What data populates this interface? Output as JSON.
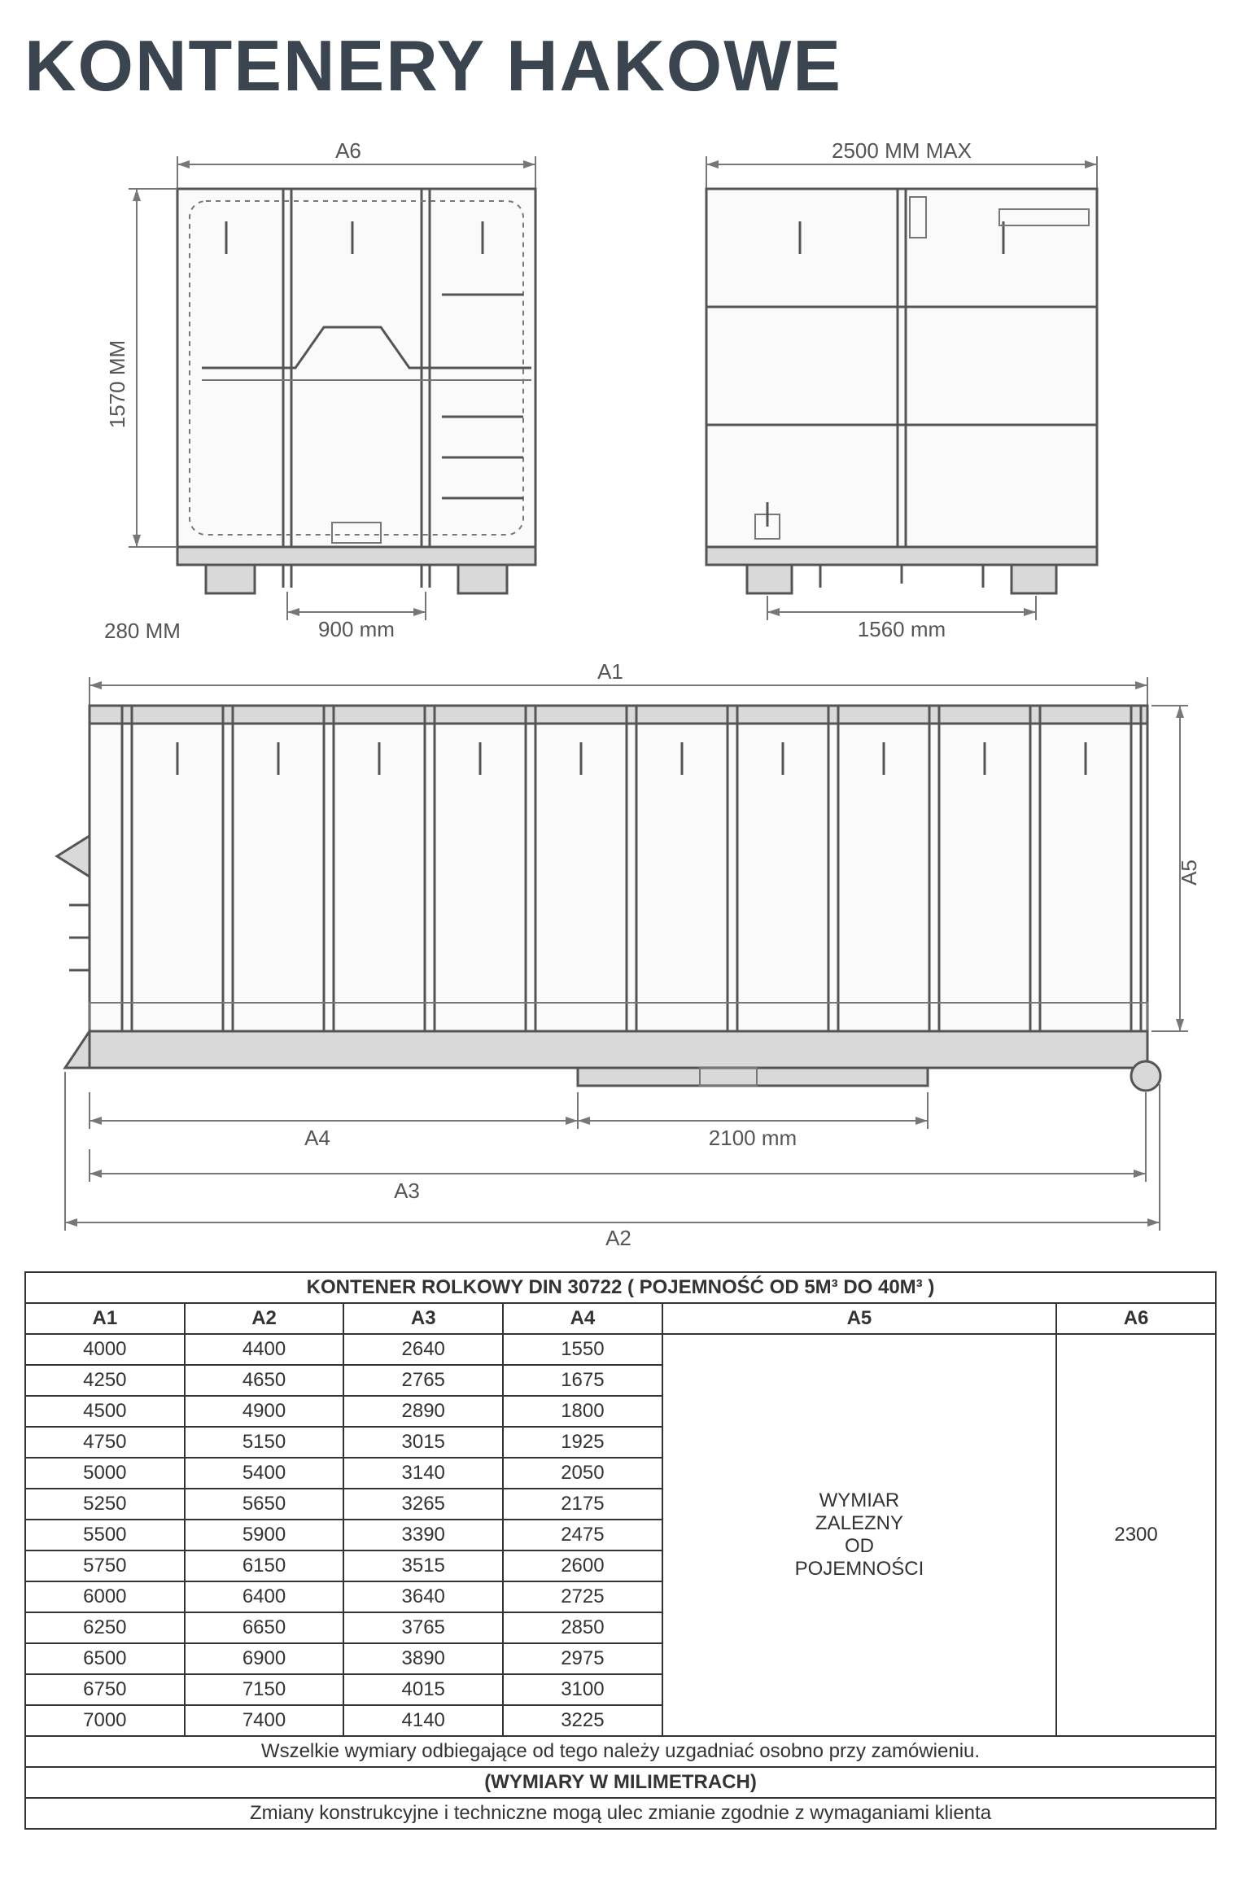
{
  "title": "KONTENERY HAKOWE",
  "drawings": {
    "front": {
      "top_label": "A6",
      "left_label": "1570 MM",
      "bottom_label": "900 mm",
      "left_margin_label": "280 MM"
    },
    "rear": {
      "top_label": "2500 MM MAX",
      "bottom_label": "1560 mm"
    },
    "side": {
      "top_label": "A1",
      "right_label": "A5",
      "dim_a4": "A4",
      "dim_2100": "2100 mm",
      "dim_a3": "A3",
      "dim_a2": "A2"
    }
  },
  "table": {
    "title": "KONTENER ROLKOWY DIN 30722 ( POJEMNOŚĆ OD  5M³ DO 40M³ )",
    "columns": [
      "A1",
      "A2",
      "A3",
      "A4",
      "A5",
      "A6"
    ],
    "rows": [
      [
        "4000",
        "4400",
        "2640",
        "1550"
      ],
      [
        "4250",
        "4650",
        "2765",
        "1675"
      ],
      [
        "4500",
        "4900",
        "2890",
        "1800"
      ],
      [
        "4750",
        "5150",
        "3015",
        "1925"
      ],
      [
        "5000",
        "5400",
        "3140",
        "2050"
      ],
      [
        "5250",
        "5650",
        "3265",
        "2175"
      ],
      [
        "5500",
        "5900",
        "3390",
        "2475"
      ],
      [
        "5750",
        "6150",
        "3515",
        "2600"
      ],
      [
        "6000",
        "6400",
        "3640",
        "2725"
      ],
      [
        "6250",
        "6650",
        "3765",
        "2850"
      ],
      [
        "6500",
        "6900",
        "3890",
        "2975"
      ],
      [
        "6750",
        "7150",
        "4015",
        "3100"
      ],
      [
        "7000",
        "7400",
        "4140",
        "3225"
      ]
    ],
    "a5_text": "WYMIAR ZALEZNY OD POJEMNOŚCI",
    "a6_text": "2300",
    "note1": "Wszelkie wymiary odbiegające od tego należy uzgadniać osobno przy zamówieniu.",
    "note2": "(WYMIARY W MILIMETRACH)",
    "note3": "Zmiany konstrukcyjne i techniczne mogą ulec zmianie zgodnie z wymaganiami klienta"
  },
  "style": {
    "title_color": "#3a4550",
    "line_color": "#555555",
    "fill_light": "#fafafa",
    "fill_grey": "#d9d9d9",
    "table_border": "#333333",
    "title_fontsize": 88,
    "table_fontsize": 24,
    "dim_fontsize": 26
  }
}
